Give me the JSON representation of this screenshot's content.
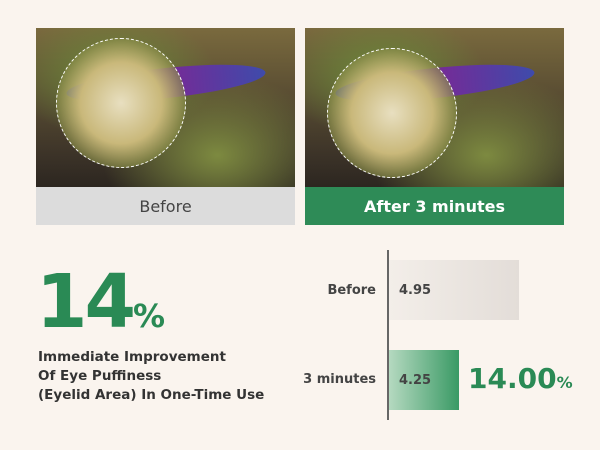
{
  "panels": [
    {
      "label": "Before",
      "bg": "#dcdcdc",
      "color": "#444"
    },
    {
      "label": "After 3 minutes",
      "bg": "#2e8b57",
      "color": "#ffffff"
    }
  ],
  "headline": {
    "value": "14",
    "unit": "%"
  },
  "description": [
    "Immediate Improvement",
    "Of Eye Puffiness",
    "(Eyelid Area) In One-Time Use"
  ],
  "chart_data": {
    "type": "bar",
    "orientation": "horizontal",
    "categories": [
      "Before",
      "3 minutes"
    ],
    "values": [
      4.95,
      4.25
    ],
    "value_labels": [
      "4.95",
      "4.25"
    ],
    "annotation": {
      "value": "14.00",
      "unit": "%"
    },
    "colors": [
      "#e3ddd8",
      "#3a9a65"
    ]
  }
}
